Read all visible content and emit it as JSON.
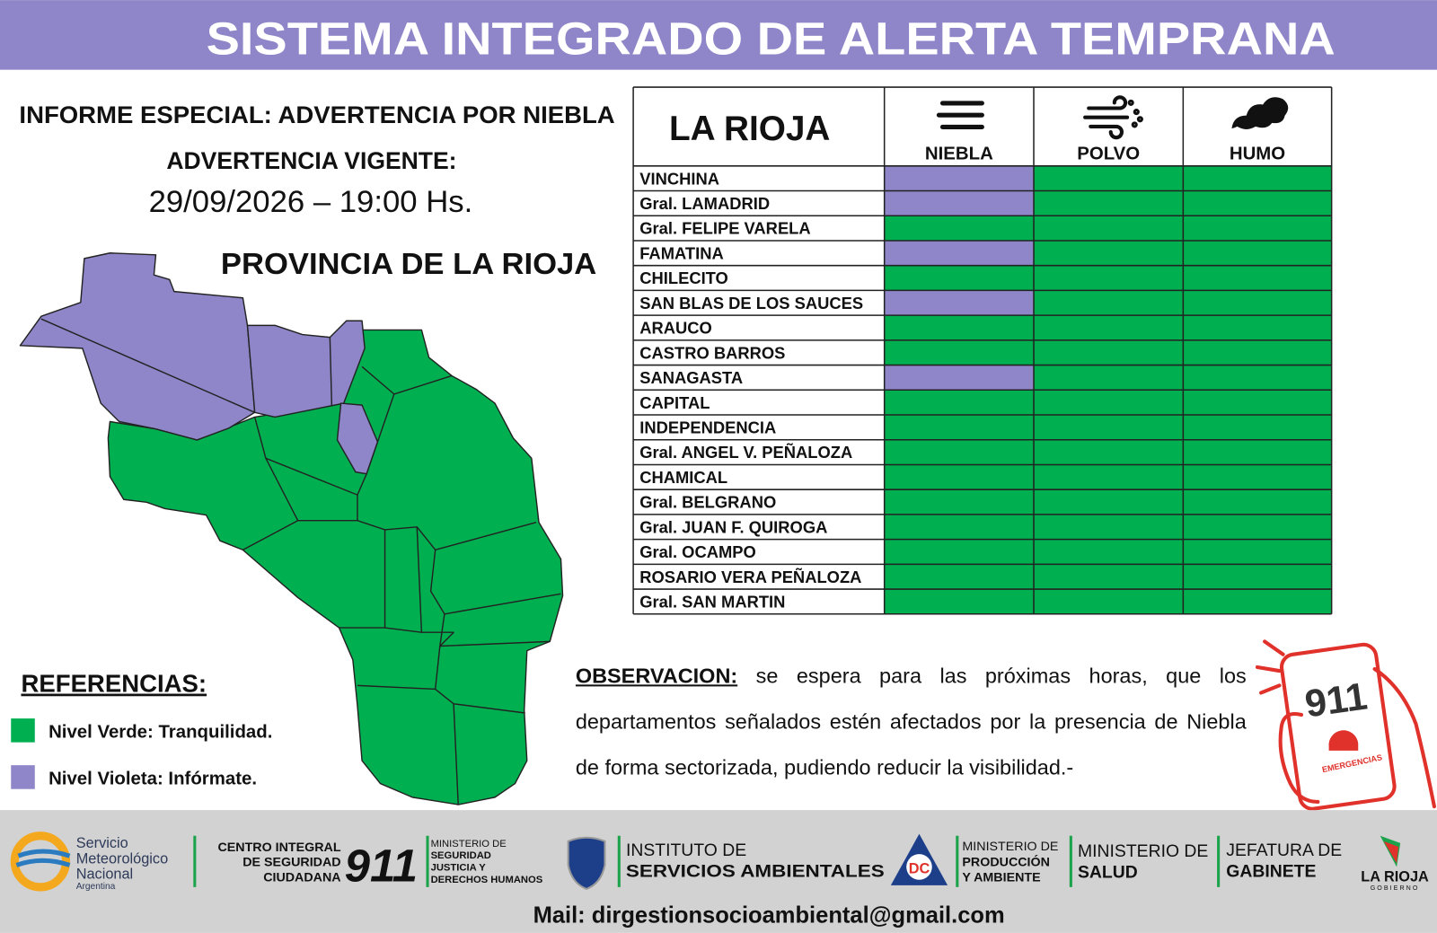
{
  "header": {
    "title": "SISTEMA INTEGRADO DE ALERTA TEMPRANA"
  },
  "report": {
    "title": "INFORME ESPECIAL: ADVERTENCIA POR NIEBLA",
    "warning_label": "ADVERTENCIA VIGENTE:",
    "datetime": "29/09/2026 – 19:00 Hs."
  },
  "map": {
    "title": "PROVINCIA DE LA RIOJA"
  },
  "table": {
    "title": "LA RIOJA",
    "columns": [
      "NIEBLA",
      "POLVO",
      "HUMO"
    ],
    "rows": [
      {
        "name": "VINCHINA",
        "cells": [
          "#8e86c8",
          "#00b050",
          "#00b050"
        ]
      },
      {
        "name": "Gral. LAMADRID",
        "cells": [
          "#8e86c8",
          "#00b050",
          "#00b050"
        ]
      },
      {
        "name": "Gral. FELIPE VARELA",
        "cells": [
          "#00b050",
          "#00b050",
          "#00b050"
        ]
      },
      {
        "name": "FAMATINA",
        "cells": [
          "#8e86c8",
          "#00b050",
          "#00b050"
        ]
      },
      {
        "name": "CHILECITO",
        "cells": [
          "#00b050",
          "#00b050",
          "#00b050"
        ]
      },
      {
        "name": "SAN BLAS DE LOS SAUCES",
        "cells": [
          "#8e86c8",
          "#00b050",
          "#00b050"
        ]
      },
      {
        "name": "ARAUCO",
        "cells": [
          "#00b050",
          "#00b050",
          "#00b050"
        ]
      },
      {
        "name": "CASTRO BARROS",
        "cells": [
          "#00b050",
          "#00b050",
          "#00b050"
        ]
      },
      {
        "name": "SANAGASTA",
        "cells": [
          "#8e86c8",
          "#00b050",
          "#00b050"
        ]
      },
      {
        "name": "CAPITAL",
        "cells": [
          "#00b050",
          "#00b050",
          "#00b050"
        ]
      },
      {
        "name": "INDEPENDENCIA",
        "cells": [
          "#00b050",
          "#00b050",
          "#00b050"
        ]
      },
      {
        "name": "Gral. ANGEL V. PEÑALOZA",
        "cells": [
          "#00b050",
          "#00b050",
          "#00b050"
        ]
      },
      {
        "name": "CHAMICAL",
        "cells": [
          "#00b050",
          "#00b050",
          "#00b050"
        ]
      },
      {
        "name": "Gral. BELGRANO",
        "cells": [
          "#00b050",
          "#00b050",
          "#00b050"
        ]
      },
      {
        "name": "Gral. JUAN F. QUIROGA",
        "cells": [
          "#00b050",
          "#00b050",
          "#00b050"
        ]
      },
      {
        "name": "Gral. OCAMPO",
        "cells": [
          "#00b050",
          "#00b050",
          "#00b050"
        ]
      },
      {
        "name": "ROSARIO VERA PEÑALOZA",
        "cells": [
          "#00b050",
          "#00b050",
          "#00b050"
        ]
      },
      {
        "name": "Gral. SAN MARTIN",
        "cells": [
          "#00b050",
          "#00b050",
          "#00b050"
        ]
      }
    ]
  },
  "references": {
    "title": "REFERENCIAS:",
    "items": [
      {
        "label": "Nivel Verde: Tranquilidad.",
        "color": "#00b050"
      },
      {
        "label": "Nivel Violeta: Infórmate.",
        "color": "#8e86c8"
      }
    ]
  },
  "observation": {
    "label": "OBSERVACION:",
    "text": "se espera para las próximas horas, que los departamentos señalados estén afectados por la presencia de Niebla de forma sectorizada, pudiendo reducir la visibilidad.-"
  },
  "emergency": {
    "number": "911",
    "label": "EMERGENCIAS"
  },
  "footer": {
    "smn": [
      "Servicio",
      "Meteorológico",
      "Nacional",
      "Argentina"
    ],
    "cisc": [
      "CENTRO INTEGRAL",
      "DE SEGURIDAD",
      "CIUDADANA"
    ],
    "cisc_number": "911",
    "seguridad": [
      "MINISTERIO DE",
      "SEGURIDAD",
      "JUSTICIA Y",
      "DERECHOS HUMANOS"
    ],
    "isa": [
      "INSTITUTO DE",
      "SERVICIOS AMBIENTALES"
    ],
    "defensa_civil": "DC",
    "produccion": [
      "MINISTERIO DE",
      "PRODUCCIÓN",
      "Y AMBIENTE"
    ],
    "salud": [
      "MINISTERIO DE",
      "SALUD"
    ],
    "jefatura": [
      "JEFATURA DE",
      "GABINETE"
    ],
    "gobierno": [
      "LA RIOJA",
      "GOBIERNO"
    ],
    "mail": "Mail: dirgestionsocioambiental@gmail.com"
  }
}
